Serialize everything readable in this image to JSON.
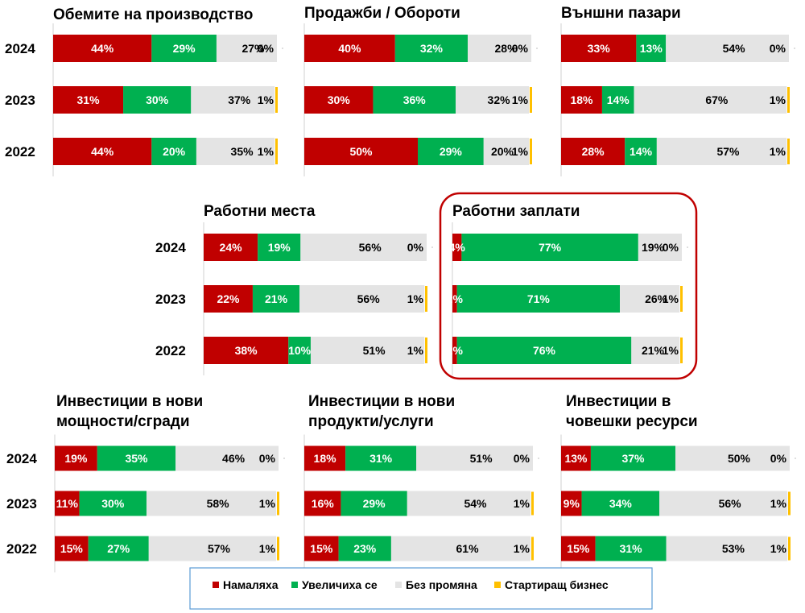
{
  "colors": {
    "decreased": "#c00000",
    "increased": "#00b050",
    "no_change": "#e4e4e4",
    "startup": "#ffc000",
    "highlight": "#c00000",
    "legend_border": "#5b9bd5"
  },
  "legend": {
    "items": [
      {
        "key": "decreased",
        "label": "Намаляха"
      },
      {
        "key": "increased",
        "label": "Увеличиха се"
      },
      {
        "key": "no_change",
        "label": "Без промяна"
      },
      {
        "key": "startup",
        "label": "Стартиращ бизнес"
      }
    ]
  },
  "chart_data": [
    {
      "type": "bar",
      "stacked": true,
      "orientation": "horizontal",
      "title": [
        "Обемите на производство"
      ],
      "categories": [
        "2024",
        "2023",
        "2022"
      ],
      "series": [
        {
          "name": "Намаляха",
          "values": [
            44,
            31,
            44
          ]
        },
        {
          "name": "Увеличиха се",
          "values": [
            29,
            30,
            20
          ]
        },
        {
          "name": "Без промяна",
          "values": [
            27,
            37,
            35
          ]
        },
        {
          "name": "Стартиращ бизнес",
          "values": [
            0,
            1,
            1
          ]
        }
      ]
    },
    {
      "type": "bar",
      "stacked": true,
      "orientation": "horizontal",
      "title": [
        "Продажби / Обороти"
      ],
      "categories": [
        "2024",
        "2023",
        "2022"
      ],
      "series": [
        {
          "name": "Намаляха",
          "values": [
            40,
            30,
            50
          ]
        },
        {
          "name": "Увеличиха се",
          "values": [
            32,
            36,
            29
          ]
        },
        {
          "name": "Без промяна",
          "values": [
            28,
            32,
            20
          ]
        },
        {
          "name": "Стартиращ бизнес",
          "values": [
            0,
            1,
            1
          ]
        }
      ]
    },
    {
      "type": "bar",
      "stacked": true,
      "orientation": "horizontal",
      "title": [
        "Външни пазари"
      ],
      "categories": [
        "2024",
        "2023",
        "2022"
      ],
      "series": [
        {
          "name": "Намаляха",
          "values": [
            33,
            18,
            28
          ]
        },
        {
          "name": "Увеличиха се",
          "values": [
            13,
            14,
            14
          ]
        },
        {
          "name": "Без промяна",
          "values": [
            54,
            67,
            57
          ]
        },
        {
          "name": "Стартиращ бизнес",
          "values": [
            0,
            1,
            1
          ]
        }
      ]
    },
    {
      "type": "bar",
      "stacked": true,
      "orientation": "horizontal",
      "title": [
        "Работни места"
      ],
      "categories": [
        "2024",
        "2023",
        "2022"
      ],
      "series": [
        {
          "name": "Намаляха",
          "values": [
            24,
            22,
            38
          ]
        },
        {
          "name": "Увеличиха се",
          "values": [
            19,
            21,
            10
          ]
        },
        {
          "name": "Без промяна",
          "values": [
            56,
            56,
            51
          ]
        },
        {
          "name": "Стартиращ бизнес",
          "values": [
            0,
            1,
            1
          ]
        }
      ]
    },
    {
      "type": "bar",
      "stacked": true,
      "orientation": "horizontal",
      "title": [
        "Работни заплати"
      ],
      "categories": [
        "2024",
        "2023",
        "2022"
      ],
      "highlighted": true,
      "series": [
        {
          "name": "Намаляха",
          "values": [
            4,
            2,
            2
          ]
        },
        {
          "name": "Увеличиха се",
          "values": [
            77,
            71,
            76
          ]
        },
        {
          "name": "Без промяна",
          "values": [
            19,
            26,
            21
          ]
        },
        {
          "name": "Стартиращ бизнес",
          "values": [
            0,
            1,
            1
          ]
        }
      ]
    },
    {
      "type": "bar",
      "stacked": true,
      "orientation": "horizontal",
      "title": [
        "Инвестиции в нови",
        "мощности/сгради"
      ],
      "categories": [
        "2024",
        "2023",
        "2022"
      ],
      "series": [
        {
          "name": "Намаляха",
          "values": [
            19,
            11,
            15
          ]
        },
        {
          "name": "Увеличиха се",
          "values": [
            35,
            30,
            27
          ]
        },
        {
          "name": "Без промяна",
          "values": [
            46,
            58,
            57
          ]
        },
        {
          "name": "Стартиращ бизнес",
          "values": [
            0,
            1,
            1
          ]
        }
      ]
    },
    {
      "type": "bar",
      "stacked": true,
      "orientation": "horizontal",
      "title": [
        "Инвестиции в нови",
        "продукти/услуги"
      ],
      "categories": [
        "2024",
        "2023",
        "2022"
      ],
      "series": [
        {
          "name": "Намаляха",
          "values": [
            18,
            16,
            15
          ]
        },
        {
          "name": "Увеличиха се",
          "values": [
            31,
            29,
            23
          ]
        },
        {
          "name": "Без промяна",
          "values": [
            51,
            54,
            61
          ]
        },
        {
          "name": "Стартиращ бизнес",
          "values": [
            0,
            1,
            1
          ]
        }
      ]
    },
    {
      "type": "bar",
      "stacked": true,
      "orientation": "horizontal",
      "title": [
        "Инвестиции в",
        "човешки ресурси"
      ],
      "categories": [
        "2024",
        "2023",
        "2022"
      ],
      "series": [
        {
          "name": "Намаляха",
          "values": [
            13,
            9,
            15
          ]
        },
        {
          "name": "Увеличиха се",
          "values": [
            37,
            34,
            31
          ]
        },
        {
          "name": "Без промяна",
          "values": [
            50,
            56,
            53
          ]
        },
        {
          "name": "Стартиращ бизнес",
          "values": [
            0,
            1,
            1
          ]
        }
      ]
    }
  ]
}
